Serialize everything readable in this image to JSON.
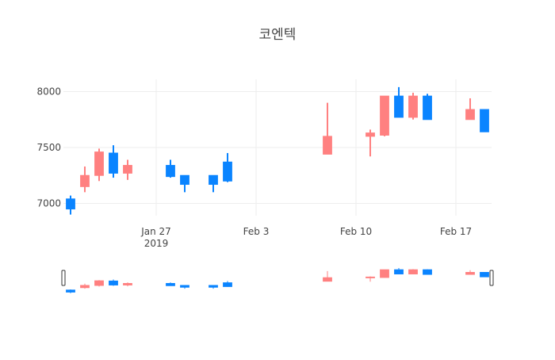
{
  "chart_data": {
    "type": "candlestick",
    "title": "코엔텍",
    "x": [
      "2019-01-21",
      "2019-01-22",
      "2019-01-23",
      "2019-01-24",
      "2019-01-25",
      "2019-01-28",
      "2019-01-29",
      "2019-01-31",
      "2019-02-01",
      "2019-02-08",
      "2019-02-11",
      "2019-02-12",
      "2019-02-13",
      "2019-02-14",
      "2019-02-15",
      "2019-02-18",
      "2019-02-19"
    ],
    "open": [
      7040,
      7150,
      7250,
      7450,
      7270,
      7340,
      7250,
      7250,
      7370,
      7440,
      7600,
      7610,
      7960,
      7770,
      7960,
      7750,
      7840
    ],
    "high": [
      7070,
      7330,
      7490,
      7520,
      7390,
      7390,
      7250,
      7250,
      7450,
      7900,
      7660,
      7960,
      8040,
      7990,
      7980,
      7940,
      7840
    ],
    "low": [
      6900,
      7100,
      7200,
      7230,
      7210,
      7230,
      7100,
      7100,
      7190,
      7440,
      7420,
      7600,
      7770,
      7750,
      7750,
      7750,
      7640
    ],
    "close": [
      6950,
      7250,
      7460,
      7270,
      7340,
      7240,
      7170,
      7170,
      7200,
      7600,
      7630,
      7960,
      7770,
      7960,
      7750,
      7840,
      7640
    ],
    "increasing_color": "#ff8080",
    "decreasing_color": "#0a84ff",
    "xlim": [
      "2019-01-20T12:00:00Z",
      "2019-02-19T12:00:00Z"
    ],
    "xticks": [
      {
        "value": "2019-01-27",
        "label": "Jan 27"
      },
      {
        "value": "2019-02-03",
        "label": "Feb 3"
      },
      {
        "value": "2019-02-10",
        "label": "Feb 10"
      },
      {
        "value": "2019-02-17",
        "label": "Feb 17"
      }
    ],
    "xaxis_year": "2019",
    "ylim": [
      6890,
      8110
    ],
    "yticks": [
      7000,
      7500,
      8000
    ],
    "grid": true,
    "rangeslider": true
  }
}
